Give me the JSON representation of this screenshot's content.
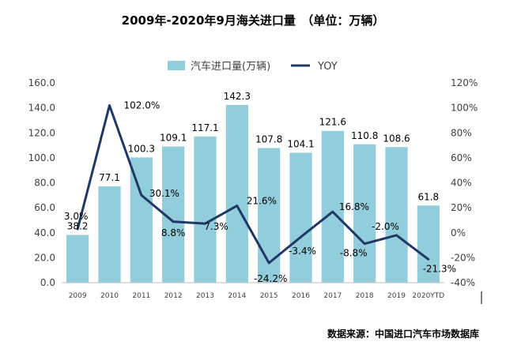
{
  "chart_data": {
    "type": "bar",
    "title": "2009年-2020年9月海关进口量　（单位：万辆）",
    "source": "数据来源：中国进口汽车市场数据库",
    "categories": [
      "2009",
      "2010",
      "2011",
      "2012",
      "2013",
      "2014",
      "2015",
      "2016",
      "2017",
      "2018",
      "2019",
      "2020YTD"
    ],
    "series": [
      {
        "name": "汽车进口量(万辆)",
        "type": "bar",
        "axis": "left",
        "color": "#92cddc",
        "values": [
          38.2,
          77.1,
          100.3,
          109.1,
          117.1,
          142.3,
          107.8,
          104.1,
          121.6,
          110.8,
          108.6,
          61.8
        ],
        "labels": [
          "38.2",
          "77.1",
          "100.3",
          "109.1",
          "117.1",
          "142.3",
          "107.8",
          "104.1",
          "121.6",
          "110.8",
          "108.6",
          "61.8"
        ]
      },
      {
        "name": "YOY",
        "type": "line",
        "axis": "right",
        "color": "#1f3864",
        "values": [
          3.0,
          102.0,
          30.1,
          8.8,
          7.3,
          21.6,
          -24.2,
          -3.4,
          16.8,
          -8.8,
          -2.0,
          -21.3
        ],
        "labels": [
          "3.0%",
          "102.0%",
          "30.1%",
          "8.8%",
          "7.3%",
          "21.6%",
          "-24.2%",
          "-3.4%",
          "16.8%",
          "-8.8%",
          "-2.0%",
          "-21.3%"
        ]
      }
    ],
    "ylim": [
      0,
      160
    ],
    "y2lim": [
      -40,
      120
    ],
    "yticks": [
      "0.0",
      "20.0",
      "40.0",
      "60.0",
      "80.0",
      "100.0",
      "120.0",
      "140.0",
      "160.0"
    ],
    "y2ticks": [
      "-40%",
      "-20%",
      "0%",
      "20%",
      "40%",
      "60%",
      "80%",
      "100%",
      "120%"
    ],
    "grid": false,
    "legend": "top-center"
  }
}
